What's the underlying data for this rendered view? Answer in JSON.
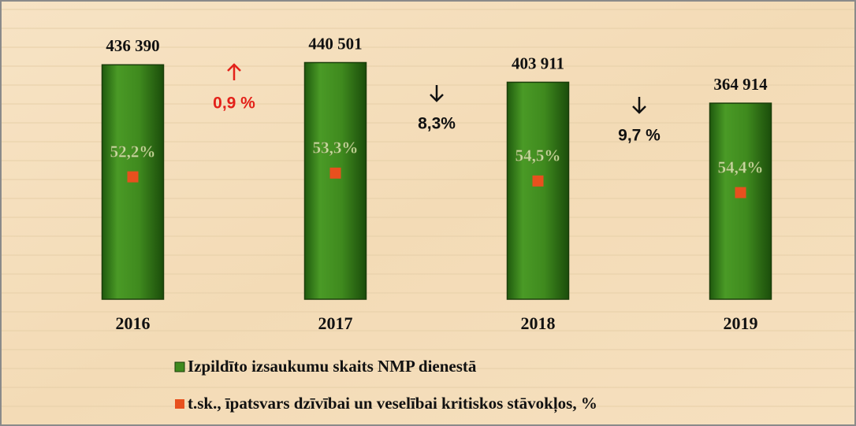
{
  "chart_data": {
    "type": "bar",
    "categories": [
      "2016",
      "2017",
      "2018",
      "2019"
    ],
    "series": [
      {
        "name": "Izpildīto izsaukumu skaits NMP dienestā",
        "color": "#3f8a1e",
        "values": [
          436390,
          440501,
          403911,
          364914
        ],
        "value_labels": [
          "436 390",
          "440 501",
          "403 911",
          "364 914"
        ]
      },
      {
        "name": "t.sk., īpatsvars dzīvībai un veselībai kritiskos stāvokļos, %",
        "color": "#e8501e",
        "values": [
          52.2,
          53.3,
          54.5,
          54.4
        ],
        "value_labels": [
          "52,2%",
          "53,3%",
          "54,5%",
          "54,4%"
        ]
      }
    ],
    "annotations": [
      {
        "text": "0,9 %",
        "direction": "up",
        "color": "#e32119"
      },
      {
        "text": "8,3%",
        "direction": "down",
        "color": "#111111"
      },
      {
        "text": "9,7 %",
        "direction": "down",
        "color": "#111111"
      }
    ],
    "ylim": [
      0,
      450000
    ]
  }
}
